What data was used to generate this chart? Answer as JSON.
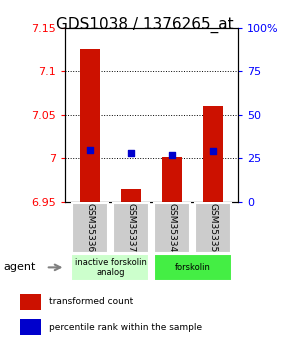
{
  "title": "GDS1038 / 1376265_at",
  "samples": [
    "GSM35336",
    "GSM35337",
    "GSM35334",
    "GSM35335"
  ],
  "red_values": [
    7.125,
    6.965,
    7.002,
    7.06
  ],
  "blue_percentiles": [
    30,
    28,
    27,
    29
  ],
  "ylim_left": [
    6.95,
    7.15
  ],
  "ylim_right": [
    0,
    100
  ],
  "yticks_left": [
    6.95,
    7.0,
    7.05,
    7.1,
    7.15
  ],
  "yticks_right": [
    0,
    25,
    50,
    75,
    100
  ],
  "ytick_labels_left": [
    "6.95",
    "7",
    "7.05",
    "7.1",
    "7.15"
  ],
  "ytick_labels_right": [
    "0",
    "25",
    "50",
    "75",
    "100%"
  ],
  "bar_color": "#cc1100",
  "blue_color": "#0000cc",
  "bar_width": 0.5,
  "agent_label": "agent",
  "legend_red": "transformed count",
  "legend_blue": "percentile rank within the sample",
  "sample_box_color": "#cccccc",
  "group1_label": "inactive forskolin\nanalog",
  "group1_samples": [
    0,
    1
  ],
  "group1_color": "#ccffcc",
  "group2_label": "forskolin",
  "group2_samples": [
    2,
    3
  ],
  "group2_color": "#44ee44",
  "title_fontsize": 11,
  "tick_fontsize": 8,
  "legend_fontsize": 6.5,
  "sample_fontsize": 6.5
}
